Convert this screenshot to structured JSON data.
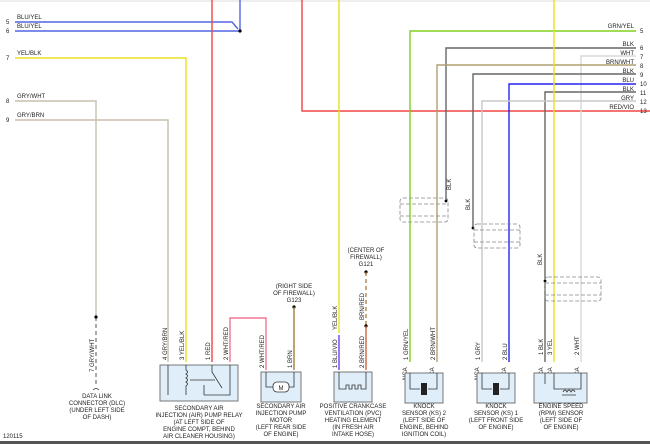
{
  "colors": {
    "blu_yel": "#5565e0",
    "yel": "#e6e020",
    "red": "#f04545",
    "pink": "#f07595",
    "gry_wht": "#c8c0b0",
    "gry_brn": "#c8bfae",
    "grn_yel": "#80d020",
    "brn_wht": "#b0a070",
    "blk": "#666666",
    "blu": "#2525f0",
    "gry": "#c8c8c8",
    "wht": "#d8d8d8",
    "brn": "#a08040",
    "blu_vio": "#7040f0",
    "brn_red": "#d06040"
  },
  "left_wires": [
    {
      "num": "5",
      "label": "BLU/YEL"
    },
    {
      "num": "6",
      "label": "BLU/YEL"
    },
    {
      "num": "7",
      "label": "YEL/BLK"
    },
    {
      "num": "8",
      "label": "GRY/WHT"
    },
    {
      "num": "9",
      "label": "GRY/BRN"
    }
  ],
  "right_wires": [
    {
      "num": "5",
      "label": "GRN/YEL"
    },
    {
      "num": "6",
      "label": "BLK"
    },
    {
      "num": "7",
      "label": "WHT"
    },
    {
      "num": "8",
      "label": "BRN/WHT"
    },
    {
      "num": "9",
      "label": "BLK"
    },
    {
      "num": "10",
      "label": "BLU"
    },
    {
      "num": "11",
      "label": "BLK"
    },
    {
      "num": "12",
      "label": "GRY"
    },
    {
      "num": "13",
      "label": "RED/VIO"
    }
  ],
  "shield_labels": [
    "BLK",
    "BLK",
    "BLK"
  ],
  "grounds": [
    {
      "lines": [
        "(RIGHT SIDE",
        "OF FIREWALL)",
        "G123"
      ]
    },
    {
      "lines": [
        "(CENTER OF",
        "FIREWALL)",
        "G121"
      ]
    }
  ],
  "components": [
    {
      "pins": [
        "7  GRY/WHT"
      ],
      "lines": [
        "DATA LINK",
        "CONNECTOR (DLC)",
        "(UNDER LEFT SIDE",
        "OF DASH)"
      ]
    },
    {
      "pins": [
        "4  GRY/BRN",
        "3  YEL/BLK",
        "1  RED",
        "2  WHT/RED"
      ],
      "lines": [
        "SECONDARY AIR",
        "INJECTION (AIR) PUMP RELAY",
        "(AT LEFT SIDE OF",
        "ENGINE COMPT, BEHIND",
        "AIR CLEANER HOUSING)"
      ]
    },
    {
      "pins": [
        "2  WHT/RED",
        "1  BRN"
      ],
      "lines": [
        "SECONDARY AIR",
        "INJECTION PUMP",
        "MOTOR",
        "(LEFT REAR SIDE",
        "OF ENGINE)"
      ],
      "symbol": "M"
    },
    {
      "pins": [
        "YEL/BLK",
        "BRN/RED",
        "1  BLU/VIO",
        "2  BRN/RED"
      ],
      "lines": [
        "POSITIVE CRANKCASE",
        "VENTILATION (PVC)",
        "HEATING ELEMENT",
        "(IN FRESH AIR",
        "INTAKE HOSE)"
      ]
    },
    {
      "pins": [
        "1  GRN/YEL",
        "2  BRN/WHT",
        "NCA",
        "NCA"
      ],
      "lines": [
        "KNOCK",
        "SENSOR (KS) 2",
        "(LEFT SIDE OF",
        "ENGINE, BEHIND",
        "IGNITION COIL)"
      ]
    },
    {
      "pins": [
        "1  GRY",
        "2  BLU",
        "NCA",
        "NCA"
      ],
      "lines": [
        "KNOCK",
        "SENSOR (KS) 1",
        "(LEFT FRONT SIDE",
        "OF ENGINE)"
      ]
    },
    {
      "pins": [
        "1  BLK",
        "3  YEL",
        "2  WHT",
        "NCA",
        "NCA",
        "NCA"
      ],
      "lines": [
        "ENGINE SPEED",
        "(RPM) SENSOR",
        "(LEFT SIDE OF",
        "OF ENGINE)"
      ]
    }
  ],
  "figure_id": "120115"
}
